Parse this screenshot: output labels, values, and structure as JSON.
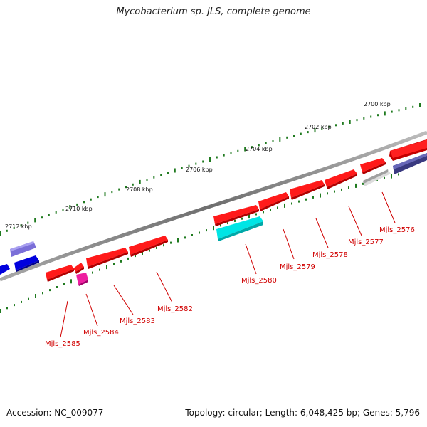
{
  "title": "Mycobacterium sp. JLS, complete genome",
  "accession": "Accession: NC_009077",
  "summary": "Topology: circular; Length: 6,048,425 bp; Genes: 5,796",
  "colors": {
    "backbone": "#8a8a8a",
    "cds": "#ee0000",
    "tick": "#1f7a1f",
    "label": "#d00000"
  },
  "kbp_labels": [
    "2700 kbp",
    "2702 kbp",
    "2704 kbp",
    "2706 kbp",
    "2708 kbp",
    "2710 kbp",
    "2712 kbp"
  ],
  "gene_labels": [
    "Mjls_2576",
    "Mjls_2577",
    "Mjls_2578",
    "Mjls_2579",
    "Mjls_2580",
    "Mjls_2582",
    "Mjls_2583",
    "Mjls_2584",
    "Mjls_2585"
  ]
}
